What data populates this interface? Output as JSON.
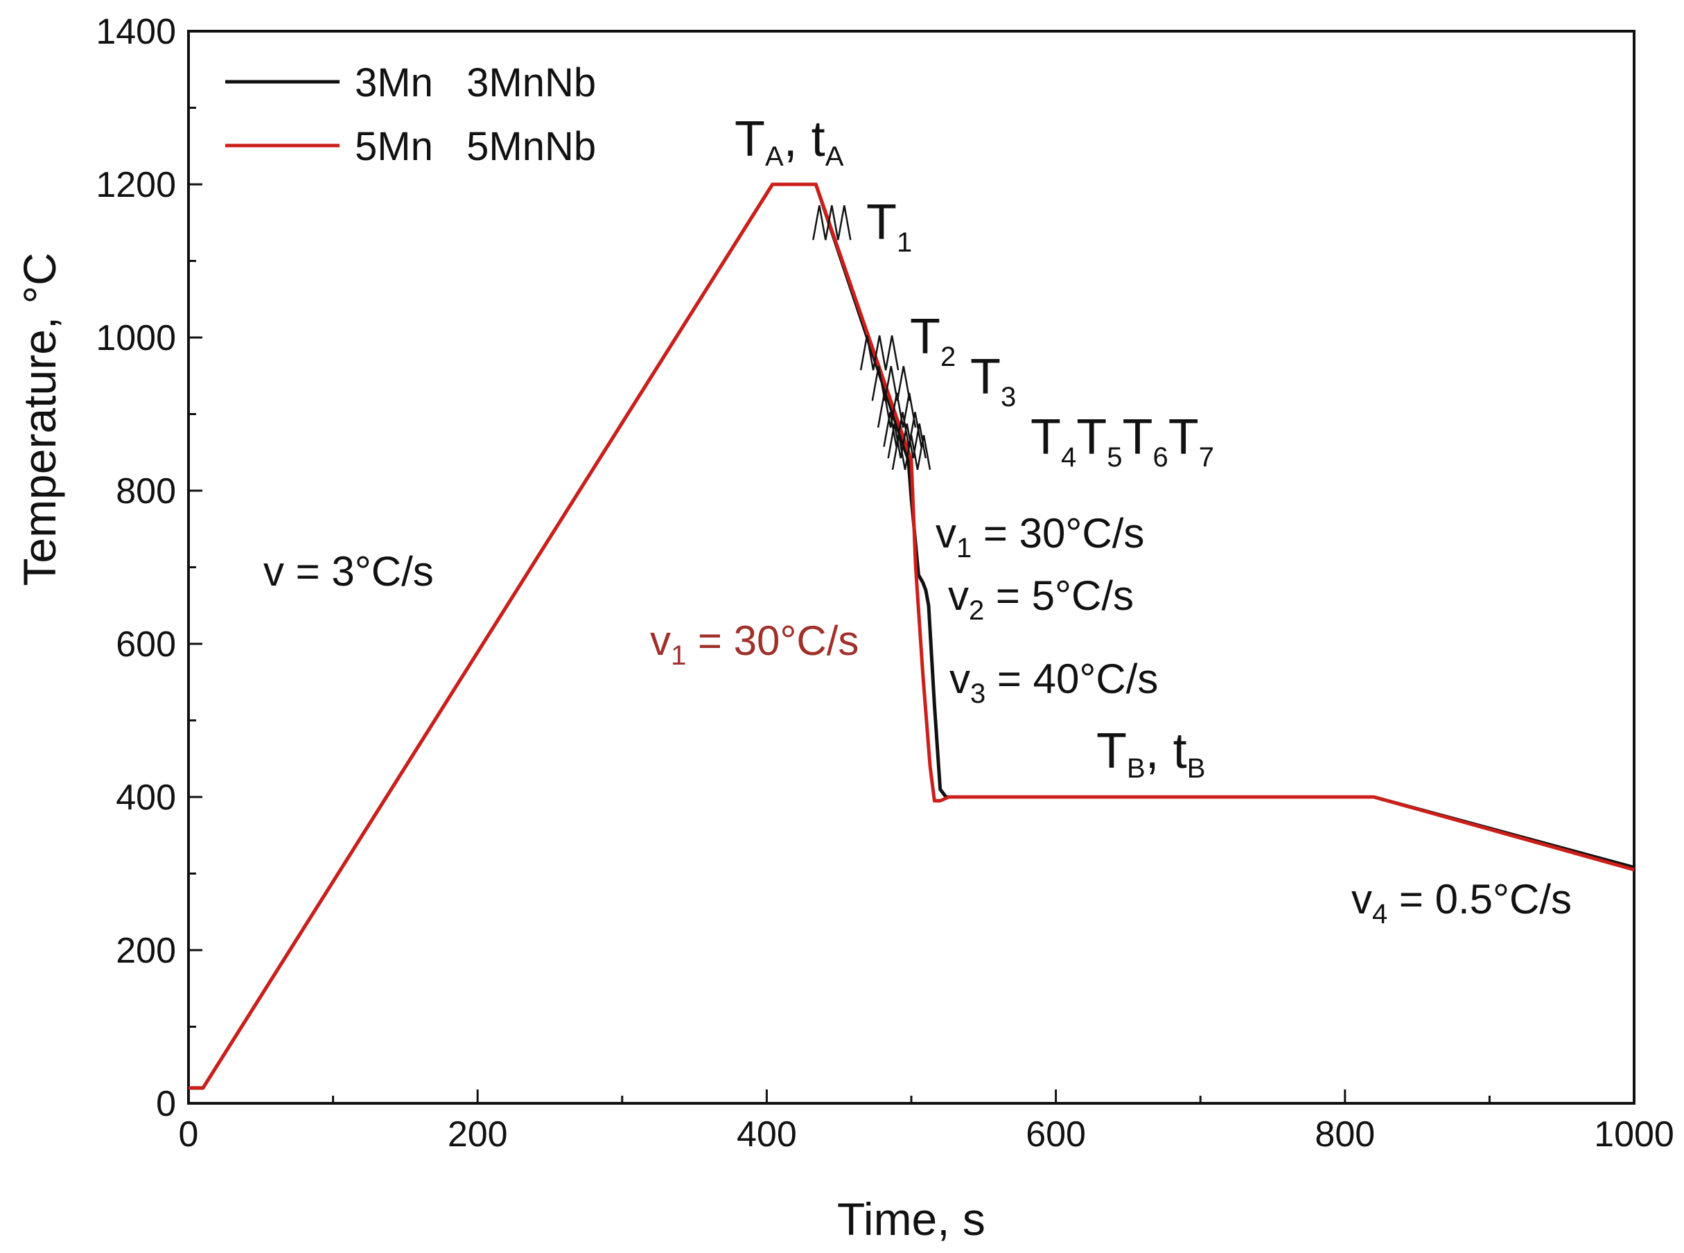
{
  "chart_data": {
    "type": "line",
    "title": "",
    "xlabel": "Time, s",
    "ylabel": "Temperature, °C",
    "xlim": [
      0,
      1000
    ],
    "ylim": [
      0,
      1400
    ],
    "xticks": [
      0,
      200,
      400,
      600,
      800,
      1000
    ],
    "yticks": [
      0,
      200,
      400,
      600,
      800,
      1000,
      1200,
      1400
    ],
    "grid": false,
    "legend": {
      "position": "top-left",
      "entries": [
        {
          "label": "3Mn   3MnNb",
          "color": "#111111"
        },
        {
          "label": "5Mn   5MnNb",
          "color": "#cc1f1a"
        }
      ]
    },
    "series": [
      {
        "name": "3Mn / 3MnNb",
        "color": "#111111",
        "x": [
          0,
          10,
          404,
          434,
          498,
          500,
          505,
          508,
          510,
          512,
          516,
          520,
          524,
          528,
          820,
          1000
        ],
        "y": [
          20,
          20,
          1200,
          1200,
          840,
          790,
          690,
          680,
          670,
          650,
          520,
          410,
          400,
          400,
          400,
          308
        ]
      },
      {
        "name": "5Mn / 5MnNb",
        "color": "#cc1f1a",
        "x": [
          0,
          10,
          404,
          434,
          500,
          503,
          508,
          513,
          516,
          520,
          526,
          820,
          1000
        ],
        "y": [
          20,
          20,
          1200,
          1200,
          840,
          700,
          560,
          440,
          395,
          395,
          400,
          400,
          305
        ]
      }
    ],
    "deformation_steps": [
      {
        "label": "T1",
        "time": 445,
        "temp": 1150
      },
      {
        "label": "T2",
        "time": 478,
        "temp": 980
      },
      {
        "label": "T3",
        "time": 486,
        "temp": 940
      },
      {
        "label": "T4",
        "time": 490,
        "temp": 905
      },
      {
        "label": "T5",
        "time": 494,
        "temp": 880
      },
      {
        "label": "T6",
        "time": 497,
        "temp": 865
      },
      {
        "label": "T7",
        "time": 500,
        "temp": 850
      }
    ],
    "annotations": {
      "ta": {
        "main": "T",
        "sub": "A",
        "sep": ", t",
        "sub2": "A"
      },
      "tb": {
        "main": "T",
        "sub": "B",
        "sep": ", t",
        "sub2": "B"
      },
      "t1": {
        "main": "T",
        "sub": "1"
      },
      "t2": {
        "main": "T",
        "sub": "2"
      },
      "t3": {
        "main": "T",
        "sub": "3"
      },
      "t4": {
        "main": "T",
        "sub": "4"
      },
      "t5": {
        "main": "T",
        "sub": "5"
      },
      "t6": {
        "main": "T",
        "sub": "6"
      },
      "t7": {
        "main": "T",
        "sub": "7"
      },
      "heating_rate": "v = 3°C/s",
      "v1_black": {
        "main": "v",
        "sub": "1",
        "rest": " = 30°C/s"
      },
      "v2": {
        "main": "v",
        "sub": "2",
        "rest": " = 5°C/s"
      },
      "v3": {
        "main": "v",
        "sub": "3",
        "rest": " = 40°C/s"
      },
      "v1_red": {
        "main": "v",
        "sub": "1",
        "rest": " = 30°C/s"
      },
      "v4": {
        "main": "v",
        "sub": "4",
        "rest": " = 0.5°C/s"
      }
    }
  }
}
